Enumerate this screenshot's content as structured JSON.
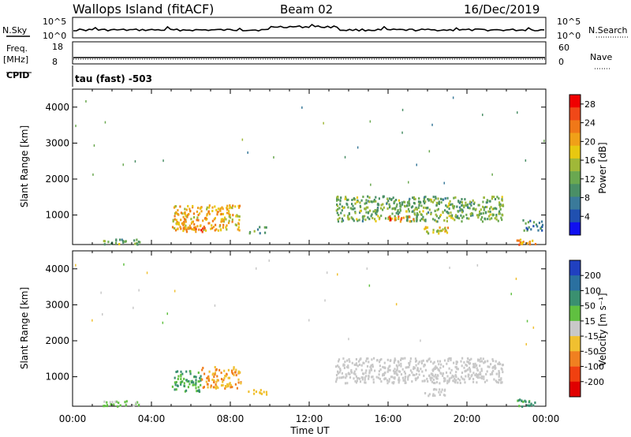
{
  "header": {
    "site": "Wallops Island (fitACF)",
    "beam": "Beam 02",
    "date": "16/Dec/2019"
  },
  "strips": {
    "nsky": {
      "label": "N.Sky",
      "ticks": [
        "10^5",
        "10^0"
      ]
    },
    "nsearch": {
      "label": "N.Search",
      "ticks": [
        "10^5",
        "10^0"
      ]
    },
    "freq": {
      "label": "Freq.",
      "unit": "[MHz]",
      "ticks": [
        "18",
        "8"
      ]
    },
    "nave": {
      "label": "Nave",
      "ticks": [
        "60",
        "0"
      ]
    },
    "cpid": {
      "label": "CPID",
      "value": "tau (fast) -503"
    }
  },
  "chart_data": [
    {
      "type": "heatmap",
      "name": "power",
      "ylabel": "Slant Range [km]",
      "xlabel": "",
      "x_ticks": [
        "00:00",
        "04:00",
        "08:00",
        "12:00",
        "16:00",
        "20:00",
        "00:00"
      ],
      "xlim_hours": [
        0,
        24
      ],
      "ylim": [
        180,
        4500
      ],
      "y_ticks": [
        1000,
        2000,
        3000,
        4000
      ],
      "colorbar": {
        "label": "Power [dB]",
        "ticks": [
          "4",
          "8",
          "12",
          "16",
          "20",
          "24",
          "28"
        ],
        "range": [
          0,
          30
        ],
        "colors": [
          "#1010f0",
          "#2050b0",
          "#3a7a9a",
          "#4a8f66",
          "#6aa850",
          "#a0b838",
          "#e8c810",
          "#f0a018",
          "#f07818",
          "#f04818",
          "#f00000"
        ]
      },
      "regions": [
        {
          "t0": 5.0,
          "t1": 8.5,
          "r0": 600,
          "r1": 1300,
          "level": 20
        },
        {
          "t0": 5.5,
          "t1": 6.7,
          "r0": 560,
          "r1": 700,
          "level": 24
        },
        {
          "t0": 8.8,
          "t1": 9.8,
          "r0": 520,
          "r1": 700,
          "level": 10
        },
        {
          "t0": 13.3,
          "t1": 21.8,
          "r0": 850,
          "r1": 1550,
          "level": 12
        },
        {
          "t0": 16.0,
          "t1": 17.3,
          "r0": 850,
          "r1": 1000,
          "level": 24
        },
        {
          "t0": 17.8,
          "t1": 19.0,
          "r0": 500,
          "r1": 700,
          "level": 18
        },
        {
          "t0": 22.5,
          "t1": 23.5,
          "r0": 200,
          "r1": 350,
          "level": 22
        },
        {
          "t0": 1.5,
          "t1": 3.5,
          "r0": 200,
          "r1": 350,
          "level": 12
        },
        {
          "t0": 22.8,
          "t1": 23.8,
          "r0": 600,
          "r1": 900,
          "level": 8
        }
      ]
    },
    {
      "type": "heatmap",
      "name": "velocity",
      "ylabel": "Slant Range [km]",
      "xlabel": "Time UT",
      "x_ticks": [
        "00:00",
        "04:00",
        "08:00",
        "12:00",
        "16:00",
        "20:00",
        "00:00"
      ],
      "xlim_hours": [
        0,
        24
      ],
      "ylim": [
        180,
        4500
      ],
      "y_ticks": [
        1000,
        2000,
        3000,
        4000
      ],
      "colorbar": {
        "label": "Velocity [m s⁻¹]",
        "ticks": [
          "200",
          "100",
          "50",
          "15",
          "-15",
          "-50",
          "-100",
          "-200"
        ],
        "colors": [
          "#2040c0",
          "#2a70a0",
          "#3a9070",
          "#60c040",
          "#c8c8c8",
          "#f0c030",
          "#f08020",
          "#f04010",
          "#e00000"
        ]
      },
      "regions": [
        {
          "t0": 5.0,
          "t1": 6.5,
          "r0": 600,
          "r1": 1200,
          "level": 50
        },
        {
          "t0": 6.5,
          "t1": 8.5,
          "r0": 700,
          "r1": 1300,
          "level": -50
        },
        {
          "t0": 8.8,
          "t1": 9.8,
          "r0": 520,
          "r1": 700,
          "level": -30
        },
        {
          "t0": 13.3,
          "t1": 21.8,
          "r0": 850,
          "r1": 1550,
          "level": 0
        },
        {
          "t0": 17.8,
          "t1": 19.0,
          "r0": 500,
          "r1": 700,
          "level": 0
        },
        {
          "t0": 22.5,
          "t1": 23.5,
          "r0": 200,
          "r1": 400,
          "level": 60
        },
        {
          "t0": 1.5,
          "t1": 3.5,
          "r0": 200,
          "r1": 350,
          "level": 20
        }
      ]
    }
  ]
}
